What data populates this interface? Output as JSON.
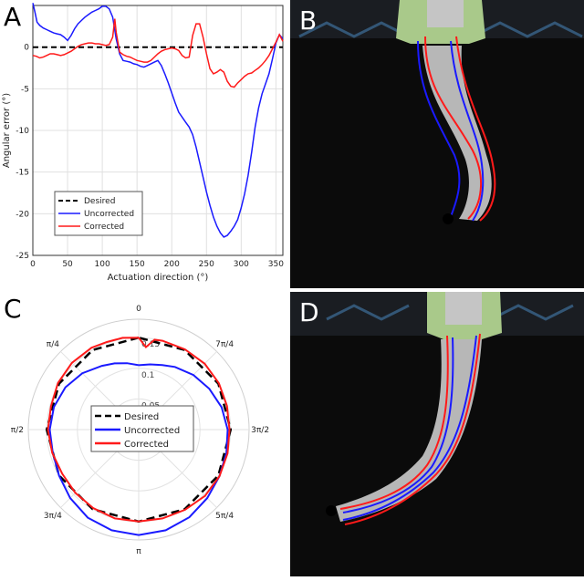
{
  "panels": {
    "a": {
      "letter": "A"
    },
    "b": {
      "letter": "B"
    },
    "c": {
      "letter": "C"
    },
    "d": {
      "letter": "D"
    }
  },
  "colors": {
    "desired": "#000000",
    "uncorrected": "#1a1aff",
    "corrected": "#ff1a1a",
    "photo_background": "#0b0b0b",
    "gripper": "#a9c98a",
    "finger": "#dcdcdc"
  },
  "chart_data": [
    {
      "type": "line",
      "panel": "A",
      "title": "",
      "xlabel": "Actuation direction (°)",
      "ylabel": "Angular error (°)",
      "xlim": [
        0,
        360
      ],
      "ylim": [
        -25,
        5
      ],
      "xticks": [
        "0",
        "50",
        "100",
        "150",
        "200",
        "250",
        "300",
        "350"
      ],
      "yticks": [
        "0",
        "-5",
        "-10",
        "-15",
        "-20",
        "-25"
      ],
      "grid": true,
      "legend_position": "lower-left",
      "series": [
        {
          "name": "Desired",
          "style": "dashed",
          "x": [
            0,
            360
          ],
          "y": [
            0,
            0
          ]
        },
        {
          "name": "Uncorrected",
          "style": "solid",
          "x": [
            0,
            3,
            6,
            10,
            15,
            20,
            25,
            30,
            35,
            40,
            45,
            50,
            55,
            60,
            65,
            70,
            75,
            80,
            85,
            90,
            95,
            100,
            105,
            110,
            115,
            120,
            125,
            130,
            135,
            140,
            145,
            150,
            155,
            160,
            165,
            170,
            175,
            180,
            185,
            190,
            195,
            200,
            205,
            210,
            215,
            220,
            225,
            230,
            235,
            240,
            245,
            250,
            255,
            260,
            265,
            270,
            275,
            280,
            285,
            290,
            295,
            300,
            305,
            310,
            315,
            320,
            325,
            330,
            335,
            340,
            345,
            350,
            355,
            360
          ],
          "y": [
            5.3,
            4.2,
            3.0,
            2.6,
            2.3,
            2.1,
            1.9,
            1.7,
            1.6,
            1.5,
            1.2,
            0.8,
            1.4,
            2.2,
            2.8,
            3.2,
            3.6,
            3.9,
            4.2,
            4.4,
            4.6,
            4.9,
            4.9,
            4.6,
            3.6,
            1.0,
            -0.8,
            -1.6,
            -1.7,
            -1.8,
            -2.0,
            -2.1,
            -2.3,
            -2.4,
            -2.2,
            -2.0,
            -1.8,
            -1.6,
            -2.2,
            -3.2,
            -4.3,
            -5.5,
            -6.7,
            -7.8,
            -8.4,
            -9.0,
            -9.6,
            -10.5,
            -12.0,
            -13.8,
            -15.6,
            -17.4,
            -19.0,
            -20.4,
            -21.5,
            -22.3,
            -22.8,
            -22.6,
            -22.1,
            -21.5,
            -20.7,
            -19.3,
            -17.6,
            -15.4,
            -12.6,
            -9.6,
            -7.3,
            -5.6,
            -4.4,
            -3.2,
            -1.4,
            0.5,
            1.5,
            1.0
          ]
        },
        {
          "name": "Corrected",
          "style": "solid",
          "x": [
            0,
            5,
            10,
            15,
            20,
            25,
            30,
            35,
            40,
            45,
            50,
            55,
            60,
            65,
            70,
            75,
            80,
            85,
            90,
            95,
            100,
            105,
            110,
            115,
            118,
            120,
            125,
            130,
            135,
            140,
            145,
            150,
            155,
            160,
            165,
            170,
            175,
            180,
            185,
            190,
            195,
            200,
            205,
            210,
            215,
            220,
            225,
            230,
            235,
            240,
            245,
            250,
            255,
            260,
            265,
            270,
            275,
            280,
            285,
            290,
            295,
            300,
            305,
            310,
            315,
            320,
            325,
            330,
            335,
            340,
            345,
            350,
            355,
            360
          ],
          "y": [
            -1.0,
            -1.1,
            -1.3,
            -1.2,
            -1.0,
            -0.8,
            -0.8,
            -0.9,
            -1.0,
            -0.9,
            -0.7,
            -0.5,
            -0.2,
            0.1,
            0.3,
            0.4,
            0.5,
            0.5,
            0.4,
            0.4,
            0.3,
            0.2,
            0.3,
            1.2,
            3.4,
            1.8,
            -0.6,
            -0.9,
            -1.1,
            -1.2,
            -1.4,
            -1.6,
            -1.7,
            -1.8,
            -1.8,
            -1.6,
            -1.2,
            -0.8,
            -0.5,
            -0.3,
            -0.2,
            -0.1,
            -0.2,
            -0.4,
            -1.0,
            -1.3,
            -1.2,
            1.4,
            2.8,
            2.8,
            1.2,
            -0.8,
            -2.6,
            -3.2,
            -3.0,
            -2.7,
            -3.0,
            -4.1,
            -4.7,
            -4.8,
            -4.3,
            -3.9,
            -3.5,
            -3.2,
            -3.1,
            -2.8,
            -2.5,
            -2.1,
            -1.6,
            -1.0,
            -0.2,
            0.6,
            1.5,
            0.7
          ]
        }
      ]
    },
    {
      "type": "polar",
      "panel": "C",
      "title": "",
      "angle_labels": [
        "0",
        "π/4",
        "π/2",
        "3π/4",
        "π",
        "5π/4",
        "3π/2",
        "7π/4"
      ],
      "radial_ticks": [
        "0.05",
        "0.1",
        "0.15"
      ],
      "rlim": [
        0,
        0.18
      ],
      "legend_position": "center",
      "series": [
        {
          "name": "Desired",
          "style": "dashed",
          "theta_deg": [
            0,
            30,
            60,
            90,
            120,
            150,
            180,
            210,
            240,
            270,
            300,
            330,
            360
          ],
          "r": [
            0.15,
            0.15,
            0.15,
            0.15,
            0.15,
            0.15,
            0.15,
            0.15,
            0.15,
            0.15,
            0.15,
            0.15,
            0.15
          ]
        },
        {
          "name": "Uncorrected",
          "style": "solid",
          "theta_deg": [
            0,
            10,
            20,
            30,
            45,
            60,
            75,
            90,
            105,
            120,
            135,
            150,
            165,
            180,
            195,
            210,
            225,
            240,
            255,
            270,
            285,
            300,
            315,
            330,
            340,
            350,
            360
          ],
          "r": [
            0.105,
            0.11,
            0.115,
            0.12,
            0.13,
            0.138,
            0.143,
            0.145,
            0.145,
            0.15,
            0.158,
            0.166,
            0.17,
            0.172,
            0.17,
            0.165,
            0.158,
            0.152,
            0.148,
            0.145,
            0.14,
            0.133,
            0.126,
            0.118,
            0.112,
            0.108,
            0.105
          ]
        },
        {
          "name": "Corrected",
          "style": "solid",
          "theta_deg": [
            0,
            10,
            20,
            30,
            45,
            60,
            75,
            90,
            105,
            120,
            135,
            150,
            165,
            180,
            195,
            210,
            225,
            240,
            255,
            270,
            285,
            300,
            315,
            330,
            345,
            350,
            355,
            360
          ],
          "r": [
            0.15,
            0.152,
            0.152,
            0.154,
            0.154,
            0.152,
            0.148,
            0.148,
            0.146,
            0.144,
            0.146,
            0.148,
            0.15,
            0.15,
            0.15,
            0.151,
            0.153,
            0.152,
            0.15,
            0.148,
            0.149,
            0.151,
            0.152,
            0.151,
            0.15,
            0.149,
            0.135,
            0.15
          ]
        }
      ]
    }
  ]
}
